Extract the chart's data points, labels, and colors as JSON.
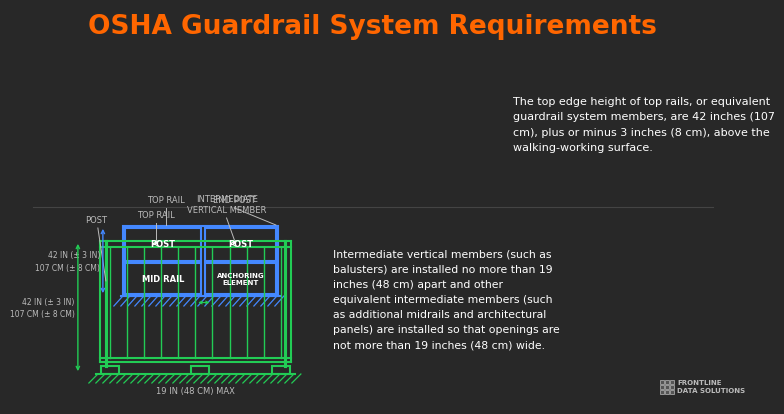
{
  "title": "OSHA Guardrail System Requirements",
  "title_color": "#FF6600",
  "bg_color": "#282828",
  "blue_color": "#4488FF",
  "green_color": "#22CC55",
  "white_color": "#FFFFFF",
  "gray_color": "#BBBBBB",
  "diagram1": {
    "label_42in": "42 IN (± 3 IN)\n107 CM (± 8 CM)"
  },
  "diagram2": {
    "label_42in": "42 IN (± 3 IN)\n107 CM (± 8 CM)",
    "label_19in": "19 IN (48 CM) MAX"
  },
  "text1": "The top edge height of top rails, or equivalent\nguardrail system members, are 42 inches (107\ncm), plus or minus 3 inches (8 cm), above the\nwalking-working surface.",
  "text2": "Intermediate vertical members (such as\nbalusters) are installed no more than 19\ninches (48 cm) apart and other\nequivalent intermediate members (such\nas additional midrails and architectural\npanels) are installed so that openings are\nnot more than 19 inches (48 cm) wide.",
  "frontline_text": "FRONTLINE\nDATA SOLUTIONS"
}
